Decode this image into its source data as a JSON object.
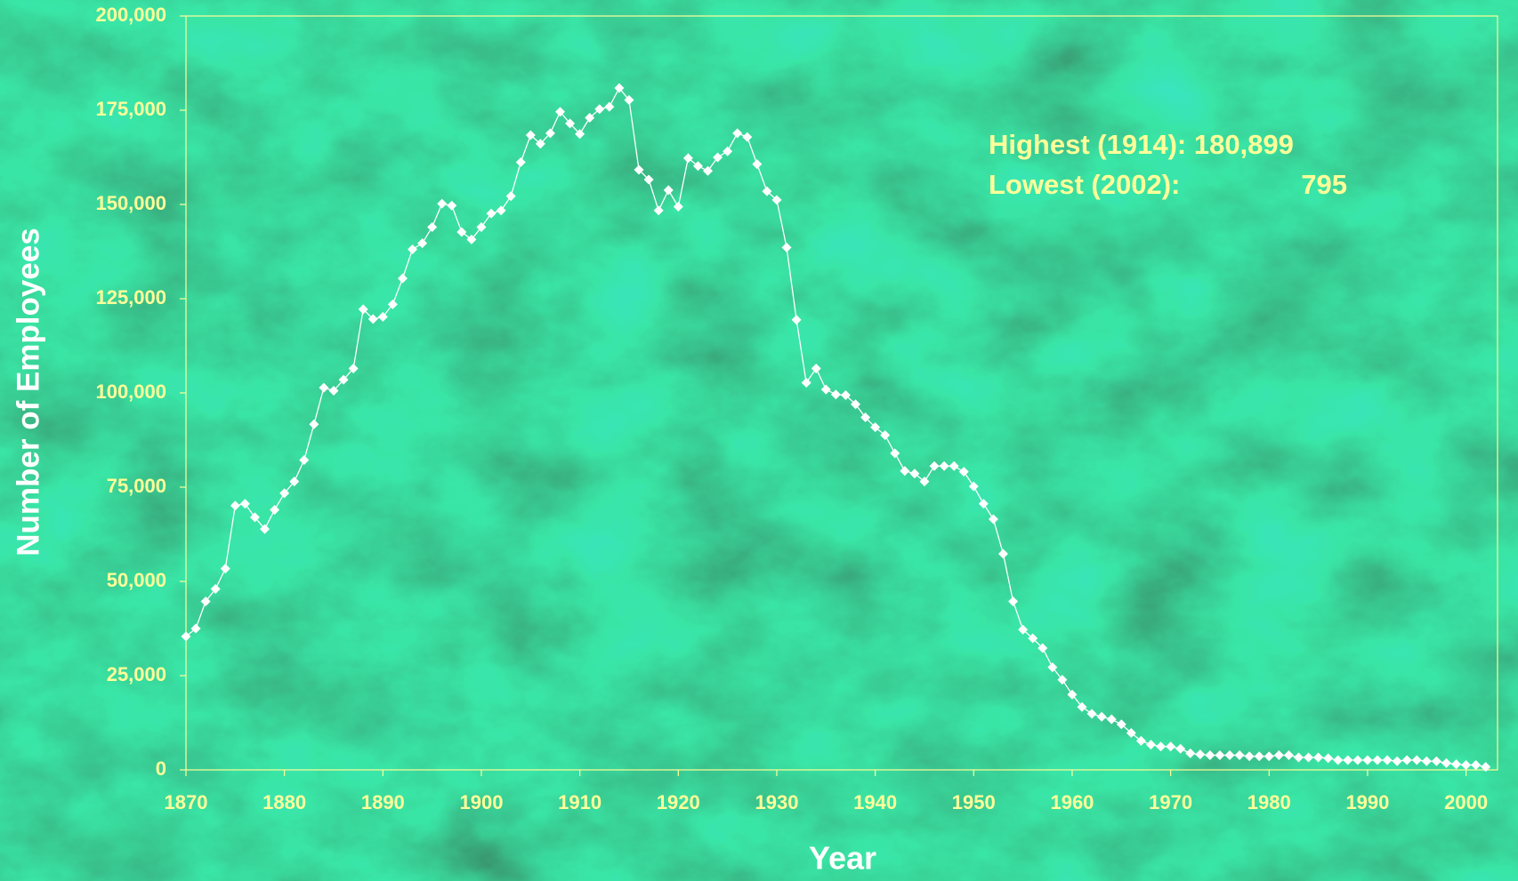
{
  "chart_data": {
    "type": "line",
    "x_label": "Year",
    "y_label": "Number of Employees",
    "annotations": [
      "Highest (1914): 180,899",
      "Lowest (2002):",
      "795"
    ],
    "x": [
      1870,
      1871,
      1872,
      1873,
      1874,
      1875,
      1876,
      1877,
      1878,
      1879,
      1880,
      1881,
      1882,
      1883,
      1884,
      1885,
      1886,
      1887,
      1888,
      1889,
      1890,
      1891,
      1892,
      1893,
      1894,
      1895,
      1896,
      1897,
      1898,
      1899,
      1900,
      1901,
      1902,
      1903,
      1904,
      1905,
      1906,
      1907,
      1908,
      1909,
      1910,
      1911,
      1912,
      1913,
      1914,
      1915,
      1916,
      1917,
      1918,
      1919,
      1920,
      1921,
      1922,
      1923,
      1924,
      1925,
      1926,
      1927,
      1928,
      1929,
      1930,
      1931,
      1932,
      1933,
      1934,
      1935,
      1936,
      1937,
      1938,
      1939,
      1940,
      1941,
      1942,
      1943,
      1944,
      1945,
      1946,
      1947,
      1948,
      1949,
      1950,
      1951,
      1952,
      1953,
      1954,
      1955,
      1956,
      1957,
      1958,
      1959,
      1960,
      1961,
      1962,
      1963,
      1964,
      1965,
      1966,
      1967,
      1968,
      1969,
      1970,
      1971,
      1972,
      1973,
      1974,
      1975,
      1976,
      1977,
      1978,
      1979,
      1980,
      1981,
      1982,
      1983,
      1984,
      1985,
      1986,
      1987,
      1988,
      1989,
      1990,
      1991,
      1992,
      1993,
      1994,
      1995,
      1996,
      1997,
      1998,
      1999,
      2000,
      2001,
      2002
    ],
    "series": [
      {
        "name": "Employees",
        "color": "#ffffff",
        "values": [
          35400,
          37500,
          44700,
          48000,
          53400,
          70100,
          70600,
          67000,
          63900,
          69000,
          73400,
          76500,
          82200,
          91700,
          101400,
          100600,
          103500,
          106500,
          122200,
          119600,
          120200,
          123500,
          130400,
          138100,
          139700,
          144000,
          150200,
          149700,
          142700,
          140700,
          144000,
          147600,
          148400,
          152200,
          161200,
          168400,
          166100,
          168900,
          174600,
          171500,
          168700,
          173000,
          175300,
          175900,
          180899,
          177700,
          159200,
          156600,
          148400,
          153800,
          149400,
          162300,
          160200,
          158900,
          162500,
          164100,
          168900,
          167900,
          160700,
          153500,
          151200,
          138600,
          119400,
          102700,
          106500,
          100900,
          99600,
          99400,
          97000,
          93500,
          90900,
          88800,
          84000,
          79300,
          78600,
          76500,
          80600,
          80600,
          80600,
          79100,
          75200,
          70600,
          66500,
          57300,
          44700,
          37200,
          34900,
          32300,
          27200,
          23900,
          20000,
          16700,
          14900,
          14100,
          13400,
          12100,
          9800,
          7700,
          6700,
          6200,
          6200,
          5600,
          4400,
          4100,
          3900,
          3900,
          3900,
          3900,
          3600,
          3600,
          3600,
          3900,
          3900,
          3300,
          3300,
          3300,
          3100,
          2600,
          2600,
          2600,
          2600,
          2600,
          2600,
          2300,
          2600,
          2600,
          2300,
          2300,
          1800,
          1500,
          1300,
          1300,
          795
        ]
      }
    ],
    "xlim": [
      1870,
      2003.2
    ],
    "xticks": [
      1870,
      1880,
      1890,
      1900,
      1910,
      1920,
      1930,
      1940,
      1950,
      1960,
      1970,
      1980,
      1990,
      2000
    ],
    "ylim": [
      0,
      200000
    ],
    "yticks": [
      0,
      {
        "value": 25000,
        "label": "25,000"
      },
      {
        "value": 50000,
        "label": "50,000"
      },
      {
        "value": 75000,
        "label": "75,000"
      },
      {
        "value": 100000,
        "label": "100,000"
      },
      {
        "value": 125000,
        "label": "125,000"
      },
      {
        "value": 150000,
        "label": "150,000"
      },
      {
        "value": 175000,
        "label": "175,000"
      },
      {
        "value": 200000,
        "label": "200,000"
      }
    ],
    "grid": false,
    "markers": true,
    "tick_color": "#ffff99"
  }
}
